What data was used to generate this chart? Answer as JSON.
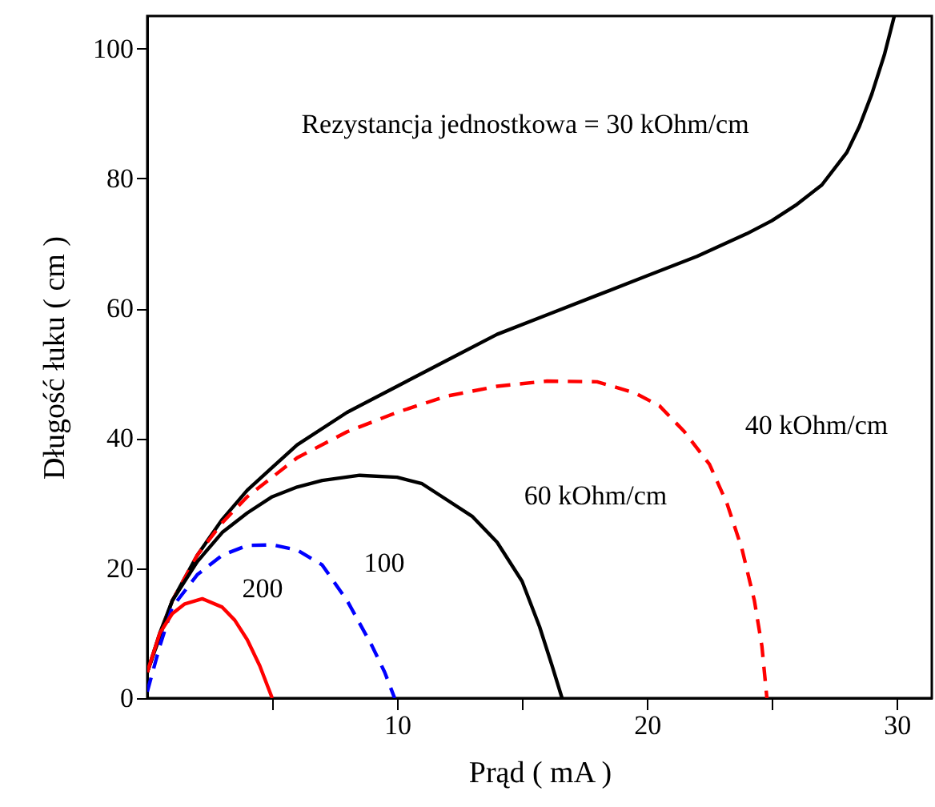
{
  "chart_data": {
    "type": "line",
    "xlabel": "Prąd  ( mA )",
    "ylabel": "Długość łuku  ( cm )",
    "xlim": [
      0,
      31.4
    ],
    "ylim": [
      0,
      105
    ],
    "xticks": [
      {
        "value": 5,
        "label": null
      },
      10,
      {
        "value": 15,
        "label": null
      },
      20,
      {
        "value": 25,
        "label": null
      },
      30
    ],
    "yticks": [
      0,
      20,
      40,
      60,
      80,
      100
    ],
    "grid": false,
    "marker": "none",
    "series": [
      {
        "name": "Rezystancja jednostkowa = 30 kOhm/cm",
        "color": "#000000",
        "line_style": "solid",
        "x": [
          0,
          0.5,
          1,
          2,
          3,
          4,
          5,
          6,
          8,
          10,
          12,
          14,
          16,
          18,
          20,
          22,
          24,
          25,
          26,
          27,
          28,
          28.5,
          29,
          29.5,
          29.9
        ],
        "values": [
          4,
          10,
          15,
          22,
          27.5,
          32,
          35.5,
          39,
          44,
          48,
          52,
          56,
          59,
          62,
          65,
          68,
          71.5,
          73.5,
          76,
          79,
          84,
          88,
          93,
          99,
          105
        ]
      },
      {
        "name": "40 kOhm/cm",
        "color": "#ff0000",
        "line_style": "dashed",
        "x": [
          0,
          1,
          2,
          3,
          4,
          6,
          8,
          10,
          12,
          14,
          16,
          18,
          19.5,
          20.5,
          21.5,
          22.5,
          23.2,
          23.8,
          24.3,
          24.6,
          24.8
        ],
        "values": [
          4,
          15,
          22,
          27,
          31,
          37,
          41,
          44,
          46.5,
          48,
          48.8,
          48.7,
          47,
          45,
          41,
          36,
          30,
          23,
          15,
          8,
          0
        ]
      },
      {
        "name": "60 kOhm/cm",
        "color": "#000000",
        "line_style": "solid",
        "x": [
          0,
          1,
          2,
          3,
          4,
          5,
          6,
          7,
          8.5,
          10,
          11,
          12,
          13,
          14,
          15,
          15.7,
          16.2,
          16.6
        ],
        "values": [
          4,
          15,
          21,
          25.5,
          28.5,
          31,
          32.5,
          33.5,
          34.3,
          34,
          33,
          30.5,
          28,
          24,
          18,
          11,
          5,
          0
        ]
      },
      {
        "name": "100",
        "color": "#0000ff",
        "line_style": "dashed",
        "x": [
          0,
          0.5,
          1,
          2,
          3,
          4,
          5,
          6,
          7,
          8,
          9,
          9.5,
          9.9
        ],
        "values": [
          1,
          8,
          14,
          19,
          22,
          23.5,
          23.6,
          22.8,
          20.5,
          15,
          8,
          4,
          0
        ]
      },
      {
        "name": "200",
        "color": "#ff0000",
        "line_style": "solid",
        "x": [
          0,
          0.5,
          1,
          1.5,
          2.2,
          3,
          3.5,
          4,
          4.5,
          5
        ],
        "values": [
          4,
          10,
          13,
          14.5,
          15.3,
          14,
          12,
          9,
          5,
          0
        ]
      }
    ]
  }
}
